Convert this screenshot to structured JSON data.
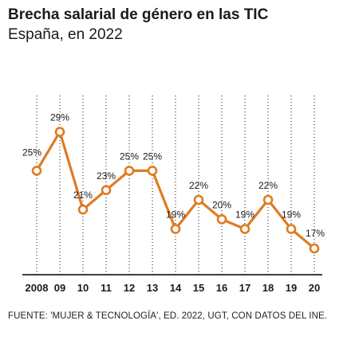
{
  "header": {
    "title": "Brecha salarial de género en las TIC",
    "subtitle": "España, en 2022"
  },
  "footer": {
    "source": "FUENTE: 'MUJER & TECNOLOGÍA', ED. 2022, UGT, CON DATOS DEL INE."
  },
  "colors": {
    "line": "#e07b22",
    "grid": "#111111",
    "text": "#1a1a1a"
  },
  "chart_data": {
    "type": "line",
    "title": "Brecha salarial de género en las TIC",
    "subtitle": "España, en 2022",
    "xlabel": "",
    "ylabel": "",
    "categories": [
      "2008",
      "09",
      "10",
      "11",
      "12",
      "13",
      "14",
      "15",
      "16",
      "17",
      "18",
      "19",
      "20"
    ],
    "series": [
      {
        "values": [
          25,
          29,
          21,
          23,
          25,
          25,
          19,
          22,
          20,
          19,
          22,
          19,
          17
        ],
        "labels": [
          "25%",
          "29%",
          "21%",
          "23%",
          "25%",
          "25%",
          "19%",
          "22%",
          "20%",
          "19%",
          "22%",
          "19%",
          "17%"
        ]
      }
    ],
    "ylim": [
      0,
      29
    ],
    "grid": "vertical dotted lines at each year",
    "legend": "none"
  }
}
